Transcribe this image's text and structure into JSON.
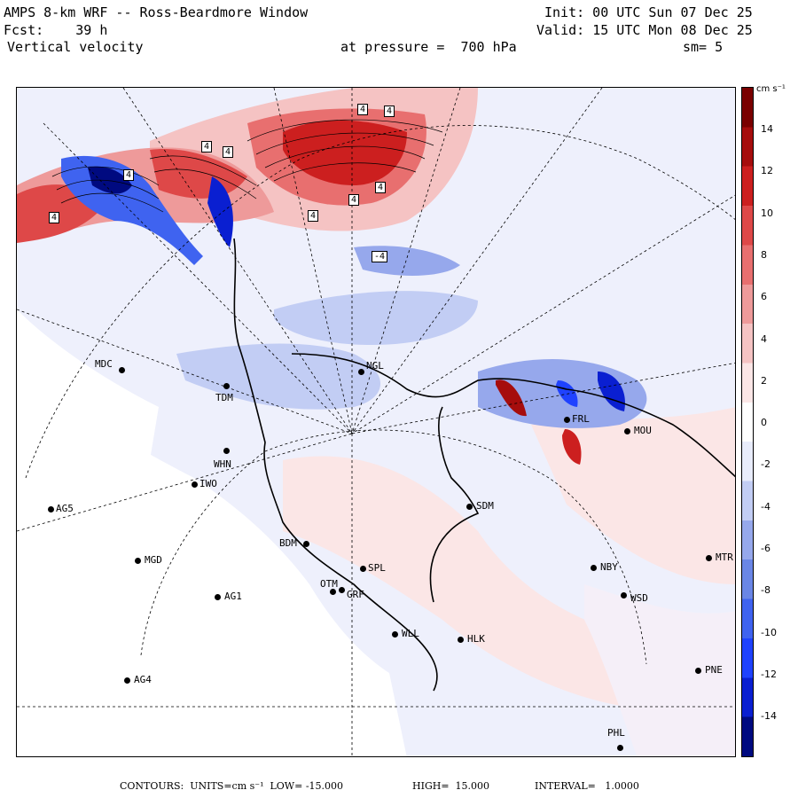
{
  "header": {
    "model": "AMPS 8-km WRF -- Ross-Beardmore Window",
    "forecast": "Fcst:    39 h",
    "field": "Vertical velocity",
    "pressure": "at pressure =  700 hPa",
    "init": "Init: 00 UTC Sun 07 Dec 25",
    "valid": "Valid: 15 UTC Mon 08 Dec 25",
    "smoothing": "sm= 5"
  },
  "colorbar": {
    "unit": "cm s⁻¹",
    "ticks": [
      "14",
      "12",
      "10",
      "8",
      "6",
      "4",
      "2",
      "0",
      "-2",
      "-4",
      "-6",
      "-8",
      "-10",
      "-12",
      "-14"
    ],
    "range": [
      -15,
      15
    ],
    "colors": [
      "#000a80",
      "#0a1fd1",
      "#1f42ff",
      "#3f63f0",
      "#6a86e6",
      "#96a8ec",
      "#c2cdf4",
      "#e8ecfb",
      "#ffffff",
      "#fbe6e6",
      "#f5c3c3",
      "#ee9a9a",
      "#e86f6f",
      "#de4848",
      "#cc1f1f",
      "#a60d0d",
      "#7a0000"
    ]
  },
  "stations": [
    {
      "code": "MDC"
    },
    {
      "code": "TDM"
    },
    {
      "code": "NGL"
    },
    {
      "code": "FRL"
    },
    {
      "code": "MOU"
    },
    {
      "code": "WHN"
    },
    {
      "code": "IWO"
    },
    {
      "code": "AG5"
    },
    {
      "code": "SDM"
    },
    {
      "code": "BDM"
    },
    {
      "code": "MGD"
    },
    {
      "code": "OTM"
    },
    {
      "code": "SPL"
    },
    {
      "code": "GRF"
    },
    {
      "code": "NBY"
    },
    {
      "code": "MTR"
    },
    {
      "code": "AG1"
    },
    {
      "code": "WSD"
    },
    {
      "code": "WLL"
    },
    {
      "code": "HLK"
    },
    {
      "code": "PNE"
    },
    {
      "code": "AG4"
    },
    {
      "code": "PHL"
    }
  ],
  "contour_labels": [
    "4",
    "4",
    "4",
    "4",
    "4",
    "4",
    "-4",
    "4",
    "4",
    "4"
  ],
  "footer": {
    "contours": "CONTOURS:  UNITS=cm s⁻¹  LOW= -15.000",
    "high": "HIGH=  15.000",
    "interval": "INTERVAL=   1.0000"
  }
}
